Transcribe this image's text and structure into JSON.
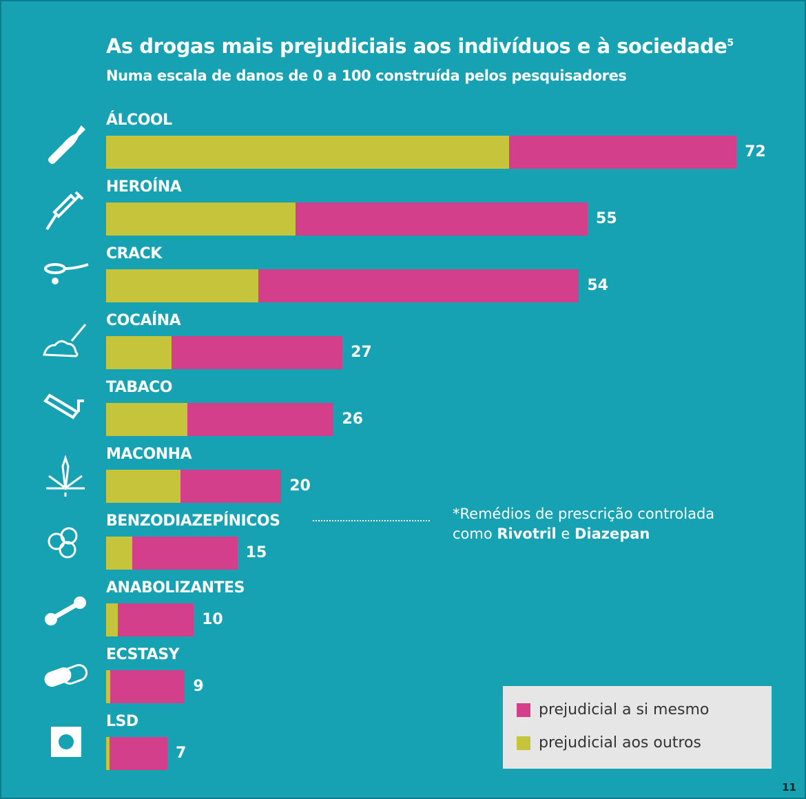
{
  "chart_data": {
    "type": "bar",
    "orientation": "horizontal",
    "stacked": true,
    "title": "As drogas mais prejudiciais aos indivíduos e à sociedade",
    "title_superscript": "5",
    "subtitle": "Numa escala de danos de 0 a 100 construída pelos pesquisadores",
    "categories": [
      "ÁLCOOL",
      "HEROÍNA",
      "CRACK",
      "COCAÍNA",
      "TABACO",
      "MACONHA",
      "BENZODIAZEPÍNICOS",
      "ANABOLIZANTES",
      "ECSTASY",
      "LSD"
    ],
    "totals": [
      72,
      55,
      54,
      27,
      26,
      20,
      15,
      10,
      9,
      7
    ],
    "series": [
      {
        "name": "prejudicial aos outros",
        "color": "#c6c43b",
        "values": [
          46,
          21.6,
          17.4,
          7.5,
          9.3,
          8.5,
          3,
          1.3,
          0.5,
          0.4
        ]
      },
      {
        "name": "prejudicial a si mesmo",
        "color": "#d43f8b",
        "values": [
          26,
          33.4,
          36.6,
          19.5,
          16.7,
          11.5,
          12,
          8.7,
          8.5,
          6.6
        ]
      }
    ],
    "xlim": [
      0,
      100
    ],
    "grid": false,
    "legend_position": "bottom-right",
    "icons": [
      "bottle-icon",
      "syringe-icon",
      "crack-pipe-icon",
      "cocaine-powder-icon",
      "cigarette-icon",
      "cannabis-leaf-icon",
      "pills-icon",
      "dumbbell-icon",
      "capsule-icon",
      "blotter-stamp-icon"
    ],
    "annotation": {
      "line1": "*Remédios de prescrição controlada",
      "line2_a": "como ",
      "line2_b": "Rivotril",
      "line2_c": " e ",
      "line2_d": "Diazepan"
    },
    "background_color": "#16a2b3"
  },
  "page_number": "11"
}
